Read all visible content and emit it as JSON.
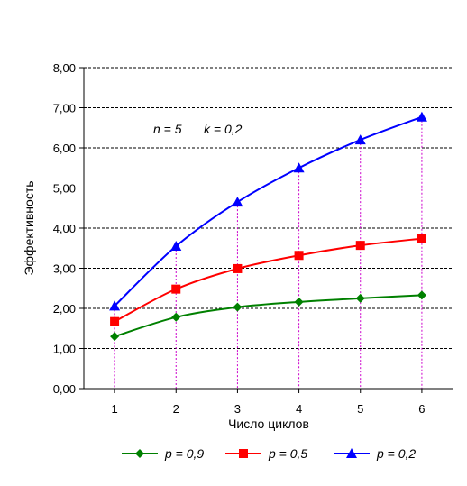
{
  "chart_data": {
    "type": "line",
    "x": [
      1,
      2,
      3,
      4,
      5,
      6
    ],
    "xlabel": "Число циклов",
    "ylabel": "Эффективность",
    "ylim": [
      0,
      8
    ],
    "yticks": [
      "0,00",
      "1,00",
      "2,00",
      "3,00",
      "4,00",
      "5,00",
      "6,00",
      "7,00",
      "8,00"
    ],
    "xticks": [
      "1",
      "2",
      "3",
      "4",
      "5",
      "6"
    ],
    "grid": "horizontal dashed",
    "drop_lines": true,
    "annotation": {
      "n": "n = 5",
      "k": "k = 0,2"
    },
    "legend_position": "bottom",
    "series": [
      {
        "name": "p = 0,9",
        "color": "#008000",
        "marker": "diamond",
        "values": [
          1.3,
          1.78,
          2.03,
          2.16,
          2.25,
          2.33
        ]
      },
      {
        "name": "p = 0,5",
        "color": "#ff0000",
        "marker": "square",
        "values": [
          1.67,
          2.48,
          2.99,
          3.32,
          3.57,
          3.74
        ]
      },
      {
        "name": "p = 0,2",
        "color": "#0000ff",
        "marker": "triangle",
        "values": [
          2.06,
          3.55,
          4.65,
          5.5,
          6.2,
          6.77
        ]
      }
    ]
  }
}
